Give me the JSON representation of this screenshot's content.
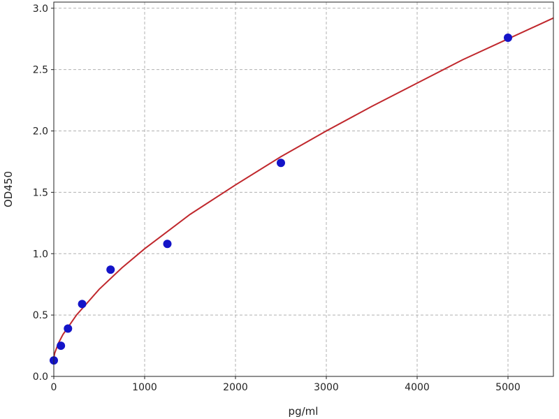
{
  "chart_data": {
    "type": "scatter",
    "title": "",
    "xlabel": "pg/ml",
    "ylabel": "OD450",
    "xlim": [
      0,
      5500
    ],
    "ylim": [
      0,
      3.05
    ],
    "xticks": [
      0,
      1000,
      2000,
      3000,
      4000,
      5000
    ],
    "yticks": [
      0.0,
      0.5,
      1.0,
      1.5,
      2.0,
      2.5,
      3.0
    ],
    "xtick_labels": [
      "0",
      "1000",
      "2000",
      "3000",
      "4000",
      "5000"
    ],
    "ytick_labels": [
      "0.0",
      "0.5",
      "1.0",
      "1.5",
      "2.0",
      "2.5",
      "3.0"
    ],
    "grid": true,
    "points": {
      "x": [
        0,
        78,
        156,
        312,
        625,
        1250,
        2500,
        5000
      ],
      "y": [
        0.13,
        0.25,
        0.39,
        0.59,
        0.87,
        1.08,
        1.74,
        2.76
      ],
      "color": "#1414c8"
    },
    "fit_curve": {
      "x": [
        0,
        10,
        50,
        100,
        250,
        500,
        750,
        1000,
        1500,
        2000,
        2500,
        3000,
        3500,
        4000,
        4500,
        5000,
        5500
      ],
      "y": [
        0.15,
        0.19,
        0.27,
        0.34,
        0.5,
        0.71,
        0.885,
        1.04,
        1.32,
        1.56,
        1.79,
        2.0,
        2.2,
        2.39,
        2.58,
        2.75,
        2.92
      ],
      "color": "#c0282d"
    }
  }
}
